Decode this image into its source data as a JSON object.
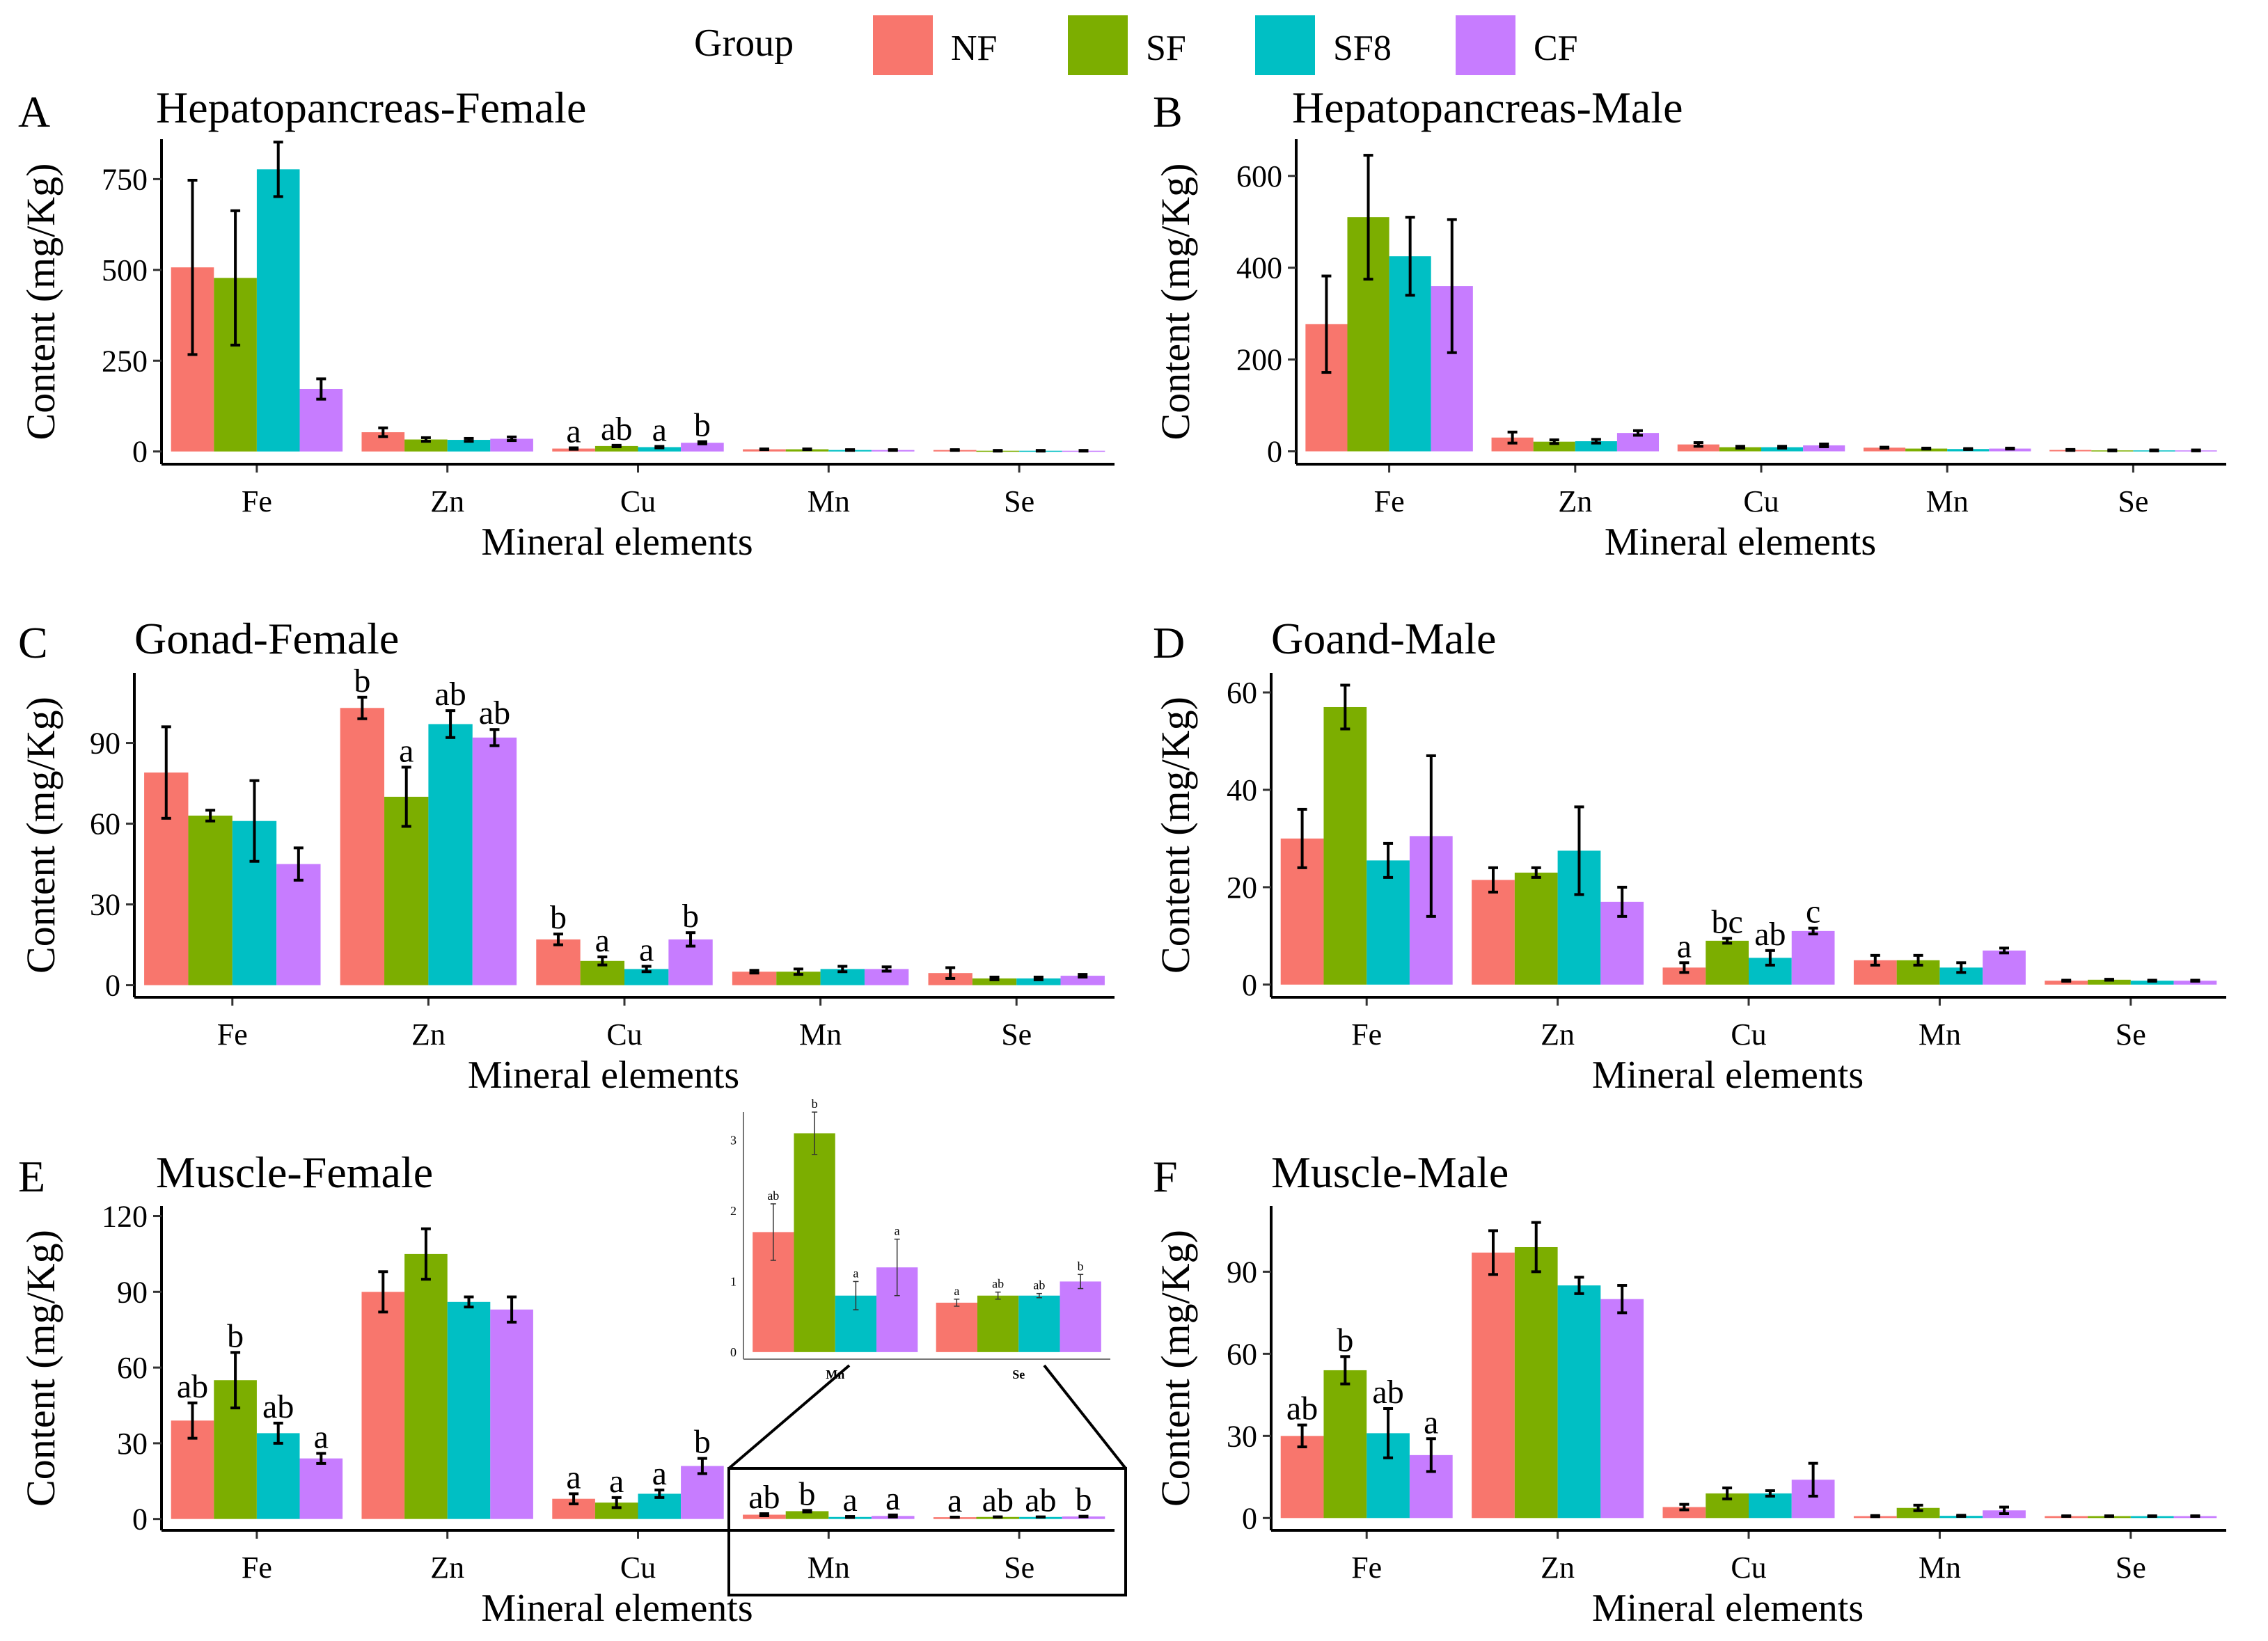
{
  "legend": {
    "title": "Group",
    "groups": [
      {
        "name": "NF",
        "color": "#F8766D"
      },
      {
        "name": "SF",
        "color": "#7CAE00"
      },
      {
        "name": "SF8",
        "color": "#00BFC4"
      },
      {
        "name": "CF",
        "color": "#C77CFF"
      }
    ]
  },
  "chart_data": [
    {
      "panel": "A",
      "type": "bar",
      "title": "Hepatopancreas-Female",
      "xlabel": "Mineral elements",
      "ylabel": "Content (mg/Kg)",
      "categories": [
        "Fe",
        "Zn",
        "Cu",
        "Mn",
        "Se"
      ],
      "ylim": [
        -35,
        860
      ],
      "yticks": [
        0,
        250,
        500,
        750
      ],
      "series": [
        {
          "name": "NF",
          "values": [
            507,
            53,
            8,
            6,
            4
          ],
          "errors": [
            240,
            12,
            2,
            1,
            1
          ]
        },
        {
          "name": "SF",
          "values": [
            478,
            33,
            15,
            6,
            2
          ],
          "errors": [
            185,
            5,
            2,
            1,
            1
          ]
        },
        {
          "name": "SF8",
          "values": [
            777,
            32,
            12,
            4,
            2
          ],
          "errors": [
            75,
            4,
            2,
            1,
            1
          ]
        },
        {
          "name": "CF",
          "values": [
            172,
            35,
            24,
            4,
            2
          ],
          "errors": [
            28,
            5,
            3,
            1,
            1
          ]
        }
      ],
      "labels": [
        null,
        null,
        [
          "a",
          "ab",
          "a",
          "b"
        ],
        null,
        null
      ]
    },
    {
      "panel": "B",
      "type": "bar",
      "title": "Hepatopancreas-Male",
      "xlabel": "Mineral elements",
      "ylabel": "Content (mg/Kg)",
      "categories": [
        "Fe",
        "Zn",
        "Cu",
        "Mn",
        "Se"
      ],
      "ylim": [
        -28,
        680
      ],
      "yticks": [
        0,
        200,
        400,
        600
      ],
      "series": [
        {
          "name": "NF",
          "values": [
            277,
            30,
            15,
            8,
            3
          ],
          "errors": [
            105,
            12,
            4,
            1,
            1
          ]
        },
        {
          "name": "SF",
          "values": [
            510,
            21,
            9,
            6,
            2
          ],
          "errors": [
            135,
            4,
            2,
            1,
            1
          ]
        },
        {
          "name": "SF8",
          "values": [
            425,
            22,
            9,
            5,
            2
          ],
          "errors": [
            85,
            4,
            2,
            1,
            1
          ]
        },
        {
          "name": "CF",
          "values": [
            360,
            40,
            13,
            6,
            2
          ],
          "errors": [
            145,
            5,
            3,
            1,
            1
          ]
        }
      ],
      "labels": [
        null,
        null,
        null,
        null,
        null
      ]
    },
    {
      "panel": "C",
      "type": "bar",
      "title": "Gonad-Female",
      "xlabel": "Mineral elements",
      "ylabel": "Content (mg/Kg)",
      "categories": [
        "Fe",
        "Zn",
        "Cu",
        "Mn",
        "Se"
      ],
      "ylim": [
        -4.5,
        116
      ],
      "yticks": [
        0,
        30,
        60,
        90
      ],
      "series": [
        {
          "name": "NF",
          "values": [
            79,
            103,
            17,
            5,
            4.5
          ],
          "errors": [
            17,
            4,
            2,
            0.5,
            2
          ]
        },
        {
          "name": "SF",
          "values": [
            63,
            70,
            9,
            5,
            2.5
          ],
          "errors": [
            2,
            11,
            1.5,
            1,
            0.5
          ]
        },
        {
          "name": "SF8",
          "values": [
            61,
            97,
            6,
            6,
            2.5
          ],
          "errors": [
            15,
            5,
            1,
            1,
            0.5
          ]
        },
        {
          "name": "CF",
          "values": [
            45,
            92,
            17,
            6,
            3.5
          ],
          "errors": [
            6,
            3,
            2.5,
            0.8,
            0.5
          ]
        }
      ],
      "labels": [
        null,
        [
          "b",
          "a",
          "ab",
          "ab"
        ],
        [
          "b",
          "a",
          "a",
          "b"
        ],
        null,
        null
      ]
    },
    {
      "panel": "D",
      "type": "bar",
      "title": "Goand-Male",
      "xlabel": "Mineral elements",
      "ylabel": "Content (mg/Kg)",
      "categories": [
        "Fe",
        "Zn",
        "Cu",
        "Mn",
        "Se"
      ],
      "ylim": [
        -2.6,
        64
      ],
      "yticks": [
        0,
        20,
        40,
        60
      ],
      "series": [
        {
          "name": "NF",
          "values": [
            30,
            21.5,
            3.5,
            5,
            0.8
          ],
          "errors": [
            6,
            2.5,
            1,
            1,
            0.1
          ]
        },
        {
          "name": "SF",
          "values": [
            57,
            23,
            9,
            5,
            1
          ],
          "errors": [
            4.5,
            1,
            0.5,
            1,
            0.1
          ]
        },
        {
          "name": "SF8",
          "values": [
            25.5,
            27.5,
            5.5,
            3.5,
            0.8
          ],
          "errors": [
            3.5,
            9,
            1.5,
            1,
            0.1
          ]
        },
        {
          "name": "CF",
          "values": [
            30.5,
            17,
            11,
            7,
            0.8
          ],
          "errors": [
            16.5,
            3,
            0.6,
            0.5,
            0.1
          ]
        }
      ],
      "labels": [
        null,
        null,
        [
          "a",
          "bc",
          "ab",
          "c"
        ],
        null,
        null
      ]
    },
    {
      "panel": "E",
      "type": "bar",
      "title": "Muscle-Female",
      "xlabel": "Mineral elements",
      "ylabel": "Content (mg/Kg)",
      "categories": [
        "Fe",
        "Zn",
        "Cu",
        "Mn",
        "Se"
      ],
      "ylim": [
        -4.5,
        124
      ],
      "yticks": [
        0,
        30,
        60,
        90,
        120
      ],
      "series": [
        {
          "name": "NF",
          "values": [
            39,
            90,
            8,
            1.7,
            0.7
          ],
          "errors": [
            7,
            8,
            2,
            0.4,
            0.05
          ]
        },
        {
          "name": "SF",
          "values": [
            55,
            105,
            6.5,
            3.1,
            0.8
          ],
          "errors": [
            11,
            10,
            2,
            0.3,
            0.05
          ]
        },
        {
          "name": "SF8",
          "values": [
            34,
            86,
            10,
            0.8,
            0.8
          ],
          "errors": [
            4,
            2,
            1.5,
            0.2,
            0.03
          ]
        },
        {
          "name": "CF",
          "values": [
            24,
            83,
            21,
            1.2,
            1
          ],
          "errors": [
            2,
            5,
            3,
            0.4,
            0.1
          ]
        }
      ],
      "labels": [
        [
          "ab",
          "b",
          "ab",
          "a"
        ],
        null,
        [
          "a",
          "a",
          "a",
          "b"
        ],
        [
          "ab",
          "b",
          "a",
          "a"
        ],
        [
          "a",
          "ab",
          "ab",
          "b"
        ]
      ],
      "inset": {
        "categories": [
          "Mn",
          "Se"
        ],
        "ylim": [
          -0.1,
          3.4
        ],
        "yticks": [
          0,
          1,
          2,
          3
        ],
        "labels": [
          [
            "ab",
            "b",
            "a",
            "a"
          ],
          [
            "a",
            "ab",
            "ab",
            "b"
          ]
        ]
      }
    },
    {
      "panel": "F",
      "type": "bar",
      "title": "Muscle-Male",
      "xlabel": "Mineral elements",
      "ylabel": "Content (mg/Kg)",
      "categories": [
        "Fe",
        "Zn",
        "Cu",
        "Mn",
        "Se"
      ],
      "ylim": [
        -4.5,
        114
      ],
      "yticks": [
        0,
        30,
        60,
        90
      ],
      "series": [
        {
          "name": "NF",
          "values": [
            30,
            97,
            4,
            0.7,
            0.7
          ],
          "errors": [
            4,
            8,
            1,
            0.2,
            0.1
          ]
        },
        {
          "name": "SF",
          "values": [
            54,
            99,
            9,
            3.7,
            0.7
          ],
          "errors": [
            5,
            9,
            2,
            1,
            0.1
          ]
        },
        {
          "name": "SF8",
          "values": [
            31,
            85,
            9,
            0.8,
            0.7
          ],
          "errors": [
            9,
            3,
            1,
            0.2,
            0.1
          ]
        },
        {
          "name": "CF",
          "values": [
            23,
            80,
            14,
            2.8,
            0.7
          ],
          "errors": [
            6,
            5,
            6,
            1.2,
            0.1
          ]
        }
      ],
      "labels": [
        [
          "ab",
          "b",
          "ab",
          "a"
        ],
        null,
        null,
        null,
        null
      ]
    }
  ]
}
